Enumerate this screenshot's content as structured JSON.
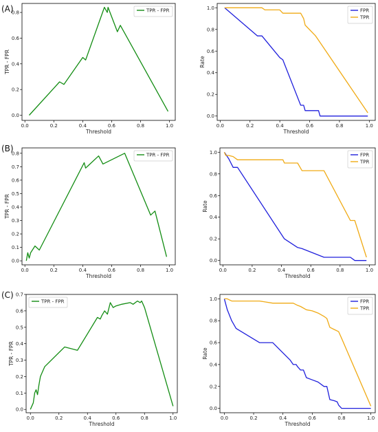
{
  "chart_data": [
    {
      "id": "A-left",
      "panel_label": "(A)",
      "type": "line",
      "xlabel": "Threshold",
      "ylabel": "TPR - FPR",
      "xlim": [
        -0.02,
        1.04
      ],
      "ylim": [
        -0.04,
        0.87
      ],
      "xticks": [
        0.0,
        0.2,
        0.4,
        0.6,
        0.8,
        1.0
      ],
      "yticks": [
        0.0,
        0.2,
        0.4,
        0.6,
        0.8
      ],
      "legend": "top-right",
      "series": [
        {
          "name": "TPR - FPR",
          "color": "#128c12",
          "x": [
            0.03,
            0.24,
            0.27,
            0.4,
            0.42,
            0.55,
            0.57,
            0.575,
            0.64,
            0.66,
            0.99
          ],
          "y": [
            0.0,
            0.26,
            0.24,
            0.45,
            0.43,
            0.84,
            0.8,
            0.84,
            0.65,
            0.7,
            0.03
          ]
        }
      ]
    },
    {
      "id": "A-right",
      "type": "line",
      "xlabel": "Threshold",
      "ylabel": "Rate",
      "xlim": [
        -0.02,
        1.04
      ],
      "ylim": [
        -0.04,
        1.04
      ],
      "xticks": [
        0.0,
        0.2,
        0.4,
        0.6,
        0.8,
        1.0
      ],
      "yticks": [
        0.0,
        0.2,
        0.4,
        0.6,
        0.8,
        1.0
      ],
      "legend": "top-right",
      "series": [
        {
          "name": "FPR",
          "color": "#1f1fdc",
          "x": [
            0.03,
            0.25,
            0.28,
            0.4,
            0.42,
            0.54,
            0.56,
            0.57,
            0.66,
            0.67,
            0.99
          ],
          "y": [
            1.0,
            0.74,
            0.74,
            0.54,
            0.52,
            0.1,
            0.1,
            0.05,
            0.05,
            0.0,
            0.0
          ]
        },
        {
          "name": "TPR",
          "color": "#f0aa14",
          "x": [
            0.03,
            0.28,
            0.3,
            0.4,
            0.42,
            0.54,
            0.56,
            0.57,
            0.64,
            0.66,
            0.99
          ],
          "y": [
            1.0,
            1.0,
            0.98,
            0.98,
            0.95,
            0.95,
            0.9,
            0.84,
            0.74,
            0.7,
            0.03
          ]
        }
      ]
    },
    {
      "id": "B-left",
      "panel_label": "(B)",
      "type": "line",
      "xlabel": "Threshold",
      "ylabel": "TPR - FPR",
      "xlim": [
        -0.02,
        1.04
      ],
      "ylim": [
        -0.03,
        0.84
      ],
      "xticks": [
        0.0,
        0.2,
        0.4,
        0.6,
        0.8,
        1.0
      ],
      "yticks": [
        0.0,
        0.1,
        0.2,
        0.3,
        0.4,
        0.5,
        0.6,
        0.7,
        0.8
      ],
      "legend": "top-right",
      "series": [
        {
          "name": "TPR - FPR",
          "color": "#128c12",
          "x": [
            0.01,
            0.02,
            0.03,
            0.04,
            0.07,
            0.1,
            0.41,
            0.42,
            0.51,
            0.54,
            0.69,
            0.87,
            0.9,
            0.98
          ],
          "y": [
            0.0,
            0.06,
            0.02,
            0.06,
            0.11,
            0.08,
            0.73,
            0.69,
            0.78,
            0.72,
            0.8,
            0.34,
            0.37,
            0.03
          ]
        }
      ]
    },
    {
      "id": "B-right",
      "type": "line",
      "xlabel": "Threshold",
      "ylabel": "Rate",
      "xlim": [
        -0.02,
        1.04
      ],
      "ylim": [
        -0.04,
        1.04
      ],
      "xticks": [
        0.0,
        0.2,
        0.4,
        0.6,
        0.8,
        1.0
      ],
      "yticks": [
        0.0,
        0.2,
        0.4,
        0.6,
        0.8,
        1.0
      ],
      "legend": "top-right",
      "series": [
        {
          "name": "FPR",
          "color": "#1f1fdc",
          "x": [
            0.01,
            0.04,
            0.07,
            0.1,
            0.41,
            0.42,
            0.51,
            0.54,
            0.69,
            0.87,
            0.9,
            0.98
          ],
          "y": [
            1.0,
            0.94,
            0.86,
            0.86,
            0.22,
            0.2,
            0.12,
            0.11,
            0.03,
            0.03,
            0.0,
            0.0
          ]
        },
        {
          "name": "TPR",
          "color": "#f0aa14",
          "x": [
            0.01,
            0.02,
            0.04,
            0.07,
            0.1,
            0.41,
            0.42,
            0.51,
            0.54,
            0.69,
            0.87,
            0.9,
            0.98
          ],
          "y": [
            1.0,
            0.97,
            0.97,
            0.96,
            0.93,
            0.93,
            0.9,
            0.9,
            0.83,
            0.83,
            0.37,
            0.37,
            0.03
          ]
        }
      ]
    },
    {
      "id": "C-left",
      "panel_label": "(C)",
      "type": "line",
      "xlabel": "Threshold",
      "ylabel": "TPR - FPR",
      "xlim": [
        -0.03,
        1.03
      ],
      "ylim": [
        -0.02,
        0.7
      ],
      "xticks": [
        0.0,
        0.2,
        0.4,
        0.6,
        0.8,
        1.0
      ],
      "yticks": [
        0.0,
        0.1,
        0.2,
        0.3,
        0.4,
        0.5,
        0.6,
        0.7
      ],
      "legend": "top-left",
      "series": [
        {
          "name": "TPR - FPR",
          "color": "#128c12",
          "x": [
            0.0,
            0.02,
            0.03,
            0.04,
            0.05,
            0.06,
            0.07,
            0.08,
            0.1,
            0.24,
            0.33,
            0.47,
            0.49,
            0.5,
            0.52,
            0.54,
            0.56,
            0.58,
            0.6,
            0.64,
            0.7,
            0.72,
            0.75,
            0.77,
            0.78,
            0.79,
            0.8,
            1.0
          ],
          "y": [
            0.0,
            0.04,
            0.1,
            0.12,
            0.09,
            0.15,
            0.2,
            0.22,
            0.26,
            0.38,
            0.36,
            0.56,
            0.55,
            0.57,
            0.6,
            0.58,
            0.65,
            0.62,
            0.63,
            0.64,
            0.65,
            0.64,
            0.66,
            0.65,
            0.66,
            0.64,
            0.62,
            0.02
          ]
        }
      ]
    },
    {
      "id": "C-right",
      "type": "line",
      "xlabel": "Threshold",
      "ylabel": "Rate",
      "xlim": [
        -0.03,
        1.03
      ],
      "ylim": [
        -0.04,
        1.04
      ],
      "xticks": [
        0.0,
        0.2,
        0.4,
        0.6,
        0.8,
        1.0
      ],
      "yticks": [
        0.0,
        0.2,
        0.4,
        0.6,
        0.8,
        1.0
      ],
      "legend": "top-right",
      "series": [
        {
          "name": "FPR",
          "color": "#1f1fdc",
          "x": [
            0.0,
            0.02,
            0.05,
            0.08,
            0.24,
            0.33,
            0.45,
            0.47,
            0.49,
            0.5,
            0.52,
            0.54,
            0.56,
            0.6,
            0.64,
            0.68,
            0.7,
            0.72,
            0.75,
            0.77,
            0.78,
            0.8,
            1.0
          ],
          "y": [
            1.0,
            0.9,
            0.8,
            0.73,
            0.6,
            0.6,
            0.44,
            0.4,
            0.4,
            0.38,
            0.35,
            0.35,
            0.28,
            0.26,
            0.24,
            0.2,
            0.2,
            0.08,
            0.07,
            0.06,
            0.03,
            0.0,
            0.0
          ]
        },
        {
          "name": "TPR",
          "color": "#f0aa14",
          "x": [
            0.0,
            0.02,
            0.05,
            0.24,
            0.33,
            0.47,
            0.5,
            0.52,
            0.56,
            0.6,
            0.64,
            0.68,
            0.7,
            0.72,
            0.75,
            0.78,
            0.8,
            1.0
          ],
          "y": [
            1.0,
            1.0,
            0.98,
            0.98,
            0.96,
            0.96,
            0.94,
            0.93,
            0.9,
            0.89,
            0.87,
            0.84,
            0.82,
            0.74,
            0.72,
            0.7,
            0.64,
            0.02
          ]
        }
      ]
    }
  ]
}
